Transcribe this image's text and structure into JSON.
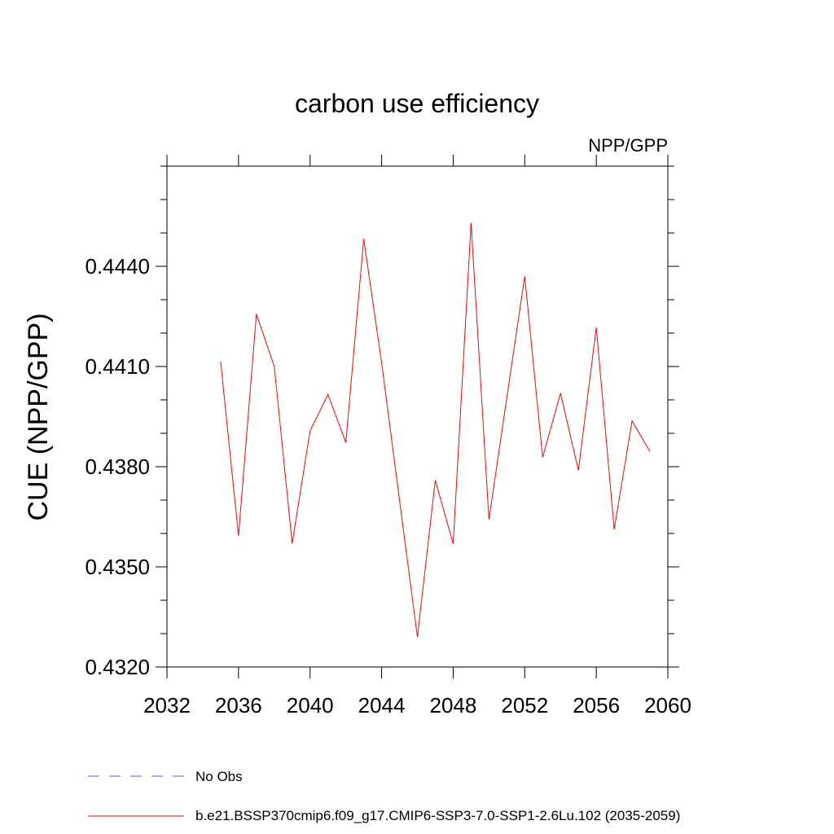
{
  "chart_data": {
    "type": "line",
    "title": "carbon use efficiency",
    "subtitle": "NPP/GPP",
    "xlabel": "",
    "ylabel": "CUE  (NPP/GPP)",
    "xlim": [
      2032,
      2060
    ],
    "ylim": [
      0.432,
      0.447
    ],
    "x_ticks": [
      2032,
      2036,
      2040,
      2044,
      2048,
      2052,
      2056,
      2060
    ],
    "x_tick_labels": [
      "2032",
      "2036",
      "2040",
      "2044",
      "2048",
      "2052",
      "2056",
      "2060"
    ],
    "y_ticks": [
      0.432,
      0.435,
      0.438,
      0.441,
      0.444
    ],
    "y_tick_labels": [
      "0.4320",
      "0.4350",
      "0.4380",
      "0.4410",
      "0.4440"
    ],
    "grid": false,
    "legend_position": "bottom",
    "series": [
      {
        "name": "No Obs",
        "color": "#6a5acd",
        "dash": "dashed",
        "x": [],
        "y": []
      },
      {
        "name": "b.e21.BSSP370cmip6.f09_g17.CMIP6-SSP3-7.0-SSP1-2.6Lu.102 (2035-2059)",
        "color": "#ff0000",
        "dash": "solid",
        "x": [
          2035,
          2036,
          2037,
          2038,
          2039,
          2040,
          2041,
          2042,
          2043,
          2044,
          2045,
          2046,
          2047,
          2048,
          2049,
          2050,
          2051,
          2052,
          2053,
          2054,
          2055,
          2056,
          2057,
          2058,
          2059
        ],
        "y": [
          0.44115,
          0.43593,
          0.44257,
          0.441,
          0.4357,
          0.43907,
          0.44016,
          0.43872,
          0.44482,
          0.44111,
          0.437,
          0.4329,
          0.43759,
          0.43569,
          0.4453,
          0.43642,
          0.44007,
          0.4437,
          0.43828,
          0.4402,
          0.43789,
          0.44217,
          0.43612,
          0.43937,
          0.43845
        ]
      }
    ]
  }
}
